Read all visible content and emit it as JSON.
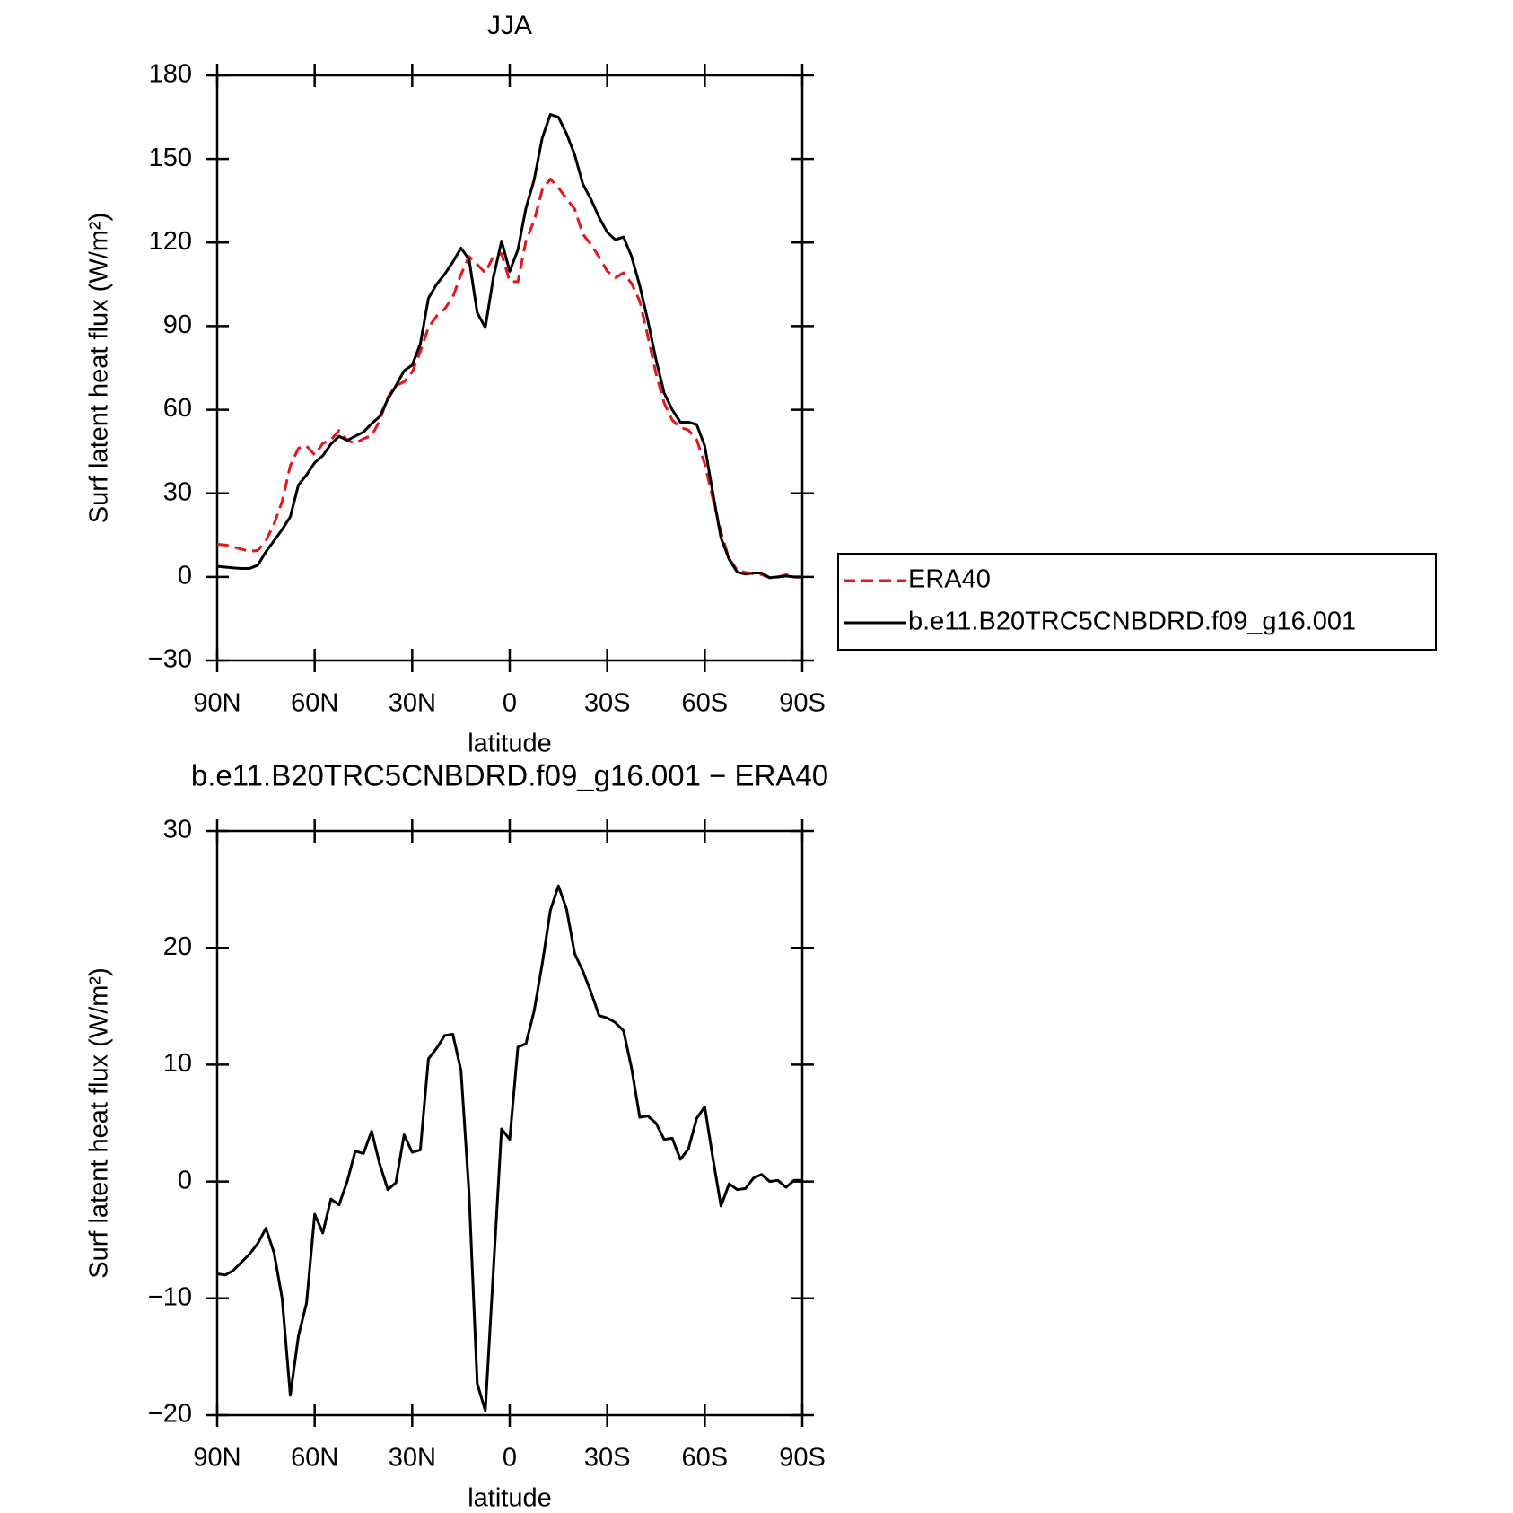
{
  "chart_data": [
    {
      "type": "line",
      "title": "JJA",
      "xlabel": "latitude",
      "ylabel": "Surf latent heat flux (W/m²)",
      "x": [
        90,
        87.5,
        85,
        82.5,
        80,
        77.5,
        75,
        72.5,
        70,
        67.5,
        65,
        62.5,
        60,
        57.5,
        55,
        52.5,
        50,
        47.5,
        45,
        42.5,
        40,
        37.5,
        35,
        32.5,
        30,
        27.5,
        25,
        22.5,
        20,
        17.5,
        15,
        12.5,
        10,
        7.5,
        5,
        2.5,
        0,
        -2.5,
        -5,
        -7.5,
        -10,
        -12.5,
        -15,
        -17.5,
        -20,
        -22.5,
        -25,
        -27.5,
        -30,
        -32.5,
        -35,
        -37.5,
        -40,
        -42.5,
        -45,
        -47.5,
        -50,
        -52.5,
        -55,
        -57.5,
        -60,
        -62.5,
        -65,
        -67.5,
        -70,
        -72.5,
        -75,
        -77.5,
        -80,
        -82.5,
        -85,
        -87.5,
        -90
      ],
      "series": [
        {
          "name": "ERA40",
          "color": "#e8141c",
          "dash": true,
          "values": [
            11.7,
            11.5,
            10.8,
            9.9,
            9.2,
            9.5,
            13,
            19,
            27,
            39.9,
            46.2,
            47,
            43.8,
            47.9,
            49.2,
            52.5,
            49,
            47.9,
            49.6,
            50.7,
            56,
            64.5,
            68.7,
            70,
            73.5,
            80.9,
            89.5,
            93.6,
            96.2,
            100.4,
            108.5,
            115,
            112.1,
            109.1,
            115.2,
            116,
            106.1,
            105.9,
            120.6,
            127.9,
            138.9,
            142.8,
            139.7,
            135.7,
            132,
            123,
            119.3,
            114.8,
            109.7,
            107.4,
            109.1,
            105.3,
            99,
            86.4,
            73,
            62.4,
            56.3,
            53.6,
            52.7,
            49.3,
            40.6,
            28,
            16.1,
            6.5,
            2.4,
            1.6,
            1.1,
            0.8,
            -0.3,
            -0.1,
            0.8,
            -0.1,
            -0.1
          ]
        },
        {
          "name": "b.e11.B20TRC5CNBDRD.f09_g16.001",
          "color": "#000000",
          "dash": false,
          "values": [
            3.8,
            3.5,
            3.2,
            3.0,
            3.0,
            4.2,
            9,
            13,
            17,
            21.6,
            33,
            36.6,
            41,
            43.5,
            47.7,
            50.5,
            49,
            50.5,
            52,
            55,
            57.5,
            63.8,
            68.6,
            74,
            76,
            83.6,
            100,
            105,
            108.7,
            113,
            118,
            114,
            94.8,
            89.5,
            107.7,
            120.5,
            109.7,
            117.4,
            132.4,
            142.5,
            157.5,
            166,
            165,
            159,
            151.5,
            141,
            135.5,
            129,
            123.7,
            121,
            122,
            115,
            104.5,
            92,
            78,
            66,
            60,
            55.5,
            55.5,
            54.7,
            47,
            30,
            14,
            6.3,
            1.7,
            1,
            1.4,
            1.4,
            -0.3,
            0,
            0.3,
            0,
            0
          ]
        }
      ],
      "xlim": [
        90,
        -90
      ],
      "xticks": [
        {
          "value": 90,
          "label": "90N"
        },
        {
          "value": 60,
          "label": "60N"
        },
        {
          "value": 30,
          "label": "30N"
        },
        0,
        {
          "value": -30,
          "label": "30S"
        },
        {
          "value": -60,
          "label": "60S"
        },
        {
          "value": -90,
          "label": "90S"
        }
      ],
      "ylim": [
        -30,
        180
      ],
      "yticks": [
        {
          "value": -30,
          "label": "−30"
        },
        0,
        30,
        60,
        90,
        120,
        150,
        180
      ],
      "legend": "right"
    },
    {
      "type": "line",
      "title": "b.e11.B20TRC5CNBDRD.f09_g16.001 − ERA40",
      "xlabel": "latitude",
      "ylabel": "Surf latent heat flux (W/m²)",
      "x": [
        90,
        87.5,
        85,
        82.5,
        80,
        77.5,
        75,
        72.5,
        70,
        67.5,
        65,
        62.5,
        60,
        57.5,
        55,
        52.5,
        50,
        47.5,
        45,
        42.5,
        40,
        37.5,
        35,
        32.5,
        30,
        27.5,
        25,
        22.5,
        20,
        17.5,
        15,
        12.5,
        10,
        7.5,
        5,
        2.5,
        0,
        -2.5,
        -5,
        -7.5,
        -10,
        -12.5,
        -15,
        -17.5,
        -20,
        -22.5,
        -25,
        -27.5,
        -30,
        -32.5,
        -35,
        -37.5,
        -40,
        -42.5,
        -45,
        -47.5,
        -50,
        -52.5,
        -55,
        -57.5,
        -60,
        -62.5,
        -65,
        -67.5,
        -70,
        -72.5,
        -75,
        -77.5,
        -80,
        -82.5,
        -85,
        -87.5,
        -90
      ],
      "color": "#000000",
      "values": [
        -7.9,
        -8.0,
        -7.6,
        -6.9,
        -6.2,
        -5.3,
        -4.0,
        -6.1,
        -10,
        -18.3,
        -13.2,
        -10.4,
        -2.8,
        -4.4,
        -1.5,
        -2.0,
        0,
        2.6,
        2.4,
        4.3,
        1.5,
        -0.7,
        -0.1,
        4.0,
        2.5,
        2.7,
        10.5,
        11.4,
        12.5,
        12.6,
        9.5,
        -1,
        -17.3,
        -19.6,
        -7.5,
        4.5,
        3.6,
        11.5,
        11.8,
        14.6,
        18.6,
        23.2,
        25.3,
        23.3,
        19.5,
        18.0,
        16.2,
        14.2,
        14.0,
        13.6,
        12.9,
        9.7,
        5.5,
        5.6,
        5.0,
        3.6,
        3.7,
        1.9,
        2.8,
        5.4,
        6.4,
        2.0,
        -2.1,
        -0.2,
        -0.7,
        -0.6,
        0.3,
        0.6,
        0,
        0.1,
        -0.5,
        0.1,
        0.1
      ],
      "xlim": [
        90,
        -90
      ],
      "xticks": [
        {
          "value": 90,
          "label": "90N"
        },
        {
          "value": 60,
          "label": "60N"
        },
        {
          "value": 30,
          "label": "30N"
        },
        0,
        {
          "value": -30,
          "label": "30S"
        },
        {
          "value": -60,
          "label": "60S"
        },
        {
          "value": -90,
          "label": "90S"
        }
      ],
      "ylim": [
        -20,
        30
      ],
      "yticks": [
        {
          "value": -20,
          "label": "−20"
        },
        {
          "value": -10,
          "label": "−10"
        },
        0,
        10,
        20,
        30
      ]
    }
  ]
}
